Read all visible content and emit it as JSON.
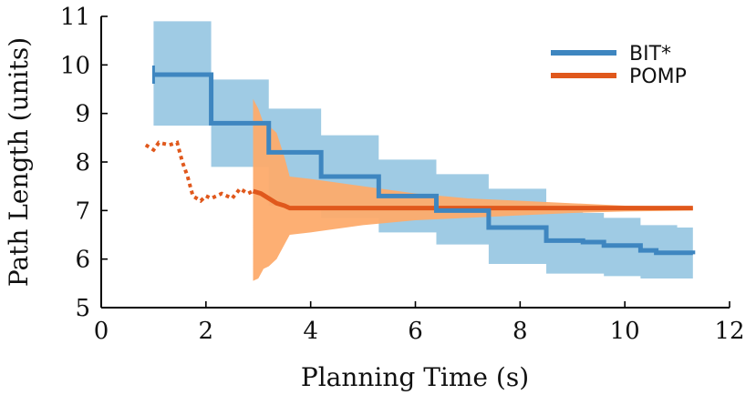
{
  "chart_data": {
    "type": "line",
    "title": "",
    "xlabel": "Planning Time (s)",
    "ylabel": "Path Length (units)",
    "xlim": [
      0,
      12
    ],
    "ylim": [
      5,
      11
    ],
    "x_ticks": [
      0,
      2,
      4,
      6,
      8,
      10,
      12
    ],
    "y_ticks": [
      5,
      6,
      7,
      8,
      9,
      10,
      11
    ],
    "grid": false,
    "legend_position": "top-right",
    "series": [
      {
        "name": "BIT*",
        "color": "#3e86c0",
        "band_color": "#9fcbe4",
        "line_style": "solid",
        "steps": [
          [
            1.0,
            9.8
          ],
          [
            1.8,
            9.8
          ],
          [
            2.1,
            8.8
          ],
          [
            2.8,
            8.8
          ],
          [
            3.2,
            8.2
          ],
          [
            3.8,
            8.2
          ],
          [
            4.2,
            7.7
          ],
          [
            4.8,
            7.7
          ],
          [
            5.3,
            7.3
          ],
          [
            6.0,
            7.3
          ],
          [
            6.4,
            7.0
          ],
          [
            7.0,
            7.0
          ],
          [
            7.4,
            6.65
          ],
          [
            8.0,
            6.65
          ],
          [
            8.5,
            6.38
          ],
          [
            9.2,
            6.35
          ],
          [
            9.6,
            6.28
          ],
          [
            10.0,
            6.28
          ],
          [
            10.3,
            6.18
          ],
          [
            10.6,
            6.13
          ],
          [
            11.0,
            6.13
          ],
          [
            11.3,
            6.1
          ]
        ],
        "band": [
          [
            1.0,
            8.75,
            10.9
          ],
          [
            1.8,
            8.75,
            10.9
          ],
          [
            2.1,
            7.9,
            9.7
          ],
          [
            2.8,
            7.9,
            9.7
          ],
          [
            3.2,
            7.1,
            9.1
          ],
          [
            3.8,
            7.1,
            9.1
          ],
          [
            4.2,
            6.85,
            8.55
          ],
          [
            4.8,
            6.85,
            8.55
          ],
          [
            5.3,
            6.55,
            8.05
          ],
          [
            6.0,
            6.55,
            8.05
          ],
          [
            6.4,
            6.3,
            7.75
          ],
          [
            7.0,
            6.3,
            7.75
          ],
          [
            7.4,
            5.9,
            7.45
          ],
          [
            8.0,
            5.9,
            7.45
          ],
          [
            8.5,
            5.7,
            7.05
          ],
          [
            9.2,
            5.7,
            6.95
          ],
          [
            9.6,
            5.65,
            6.85
          ],
          [
            10.0,
            5.65,
            6.85
          ],
          [
            10.3,
            5.6,
            6.7
          ],
          [
            10.6,
            5.6,
            6.7
          ],
          [
            11.0,
            5.6,
            6.65
          ],
          [
            11.3,
            5.6,
            6.6
          ]
        ],
        "start_marker": [
          1.0,
          9.8
        ]
      },
      {
        "name": "POMP",
        "color": "#e0581c",
        "band_color": "#fdab6b",
        "line_style": "solid",
        "dotted_prefix": [
          [
            0.85,
            8.35
          ],
          [
            1.0,
            8.25
          ],
          [
            1.1,
            8.4
          ],
          [
            1.3,
            8.35
          ],
          [
            1.45,
            8.4
          ],
          [
            1.55,
            8.0
          ],
          [
            1.65,
            7.7
          ],
          [
            1.75,
            7.3
          ],
          [
            1.9,
            7.2
          ],
          [
            2.0,
            7.3
          ],
          [
            2.1,
            7.25
          ],
          [
            2.3,
            7.35
          ],
          [
            2.5,
            7.25
          ],
          [
            2.65,
            7.45
          ],
          [
            2.8,
            7.35
          ],
          [
            2.9,
            7.4
          ]
        ],
        "points": [
          [
            2.9,
            7.4
          ],
          [
            3.05,
            7.35
          ],
          [
            3.2,
            7.25
          ],
          [
            3.35,
            7.15
          ],
          [
            3.5,
            7.1
          ],
          [
            3.6,
            7.05
          ],
          [
            4.0,
            7.05
          ],
          [
            6.0,
            7.05
          ],
          [
            8.0,
            7.05
          ],
          [
            10.0,
            7.05
          ],
          [
            11.3,
            7.05
          ]
        ],
        "band": [
          [
            2.9,
            5.55,
            9.3
          ],
          [
            3.0,
            5.6,
            9.1
          ],
          [
            3.1,
            5.8,
            8.8
          ],
          [
            3.2,
            5.85,
            8.75
          ],
          [
            3.35,
            6.0,
            8.6
          ],
          [
            3.5,
            6.3,
            8.1
          ],
          [
            3.6,
            6.5,
            7.7
          ],
          [
            4.0,
            6.55,
            7.65
          ],
          [
            5.0,
            6.7,
            7.5
          ],
          [
            6.0,
            6.8,
            7.35
          ],
          [
            7.0,
            6.85,
            7.25
          ],
          [
            8.0,
            6.9,
            7.2
          ],
          [
            9.0,
            6.95,
            7.15
          ],
          [
            10.0,
            6.98,
            7.1
          ],
          [
            11.3,
            7.0,
            7.08
          ]
        ]
      }
    ]
  }
}
